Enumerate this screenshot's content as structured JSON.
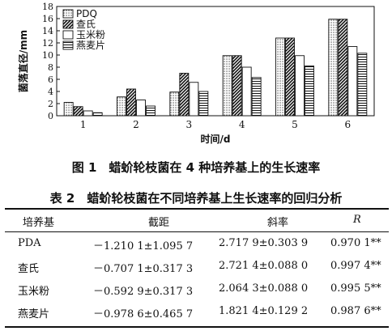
{
  "chart_data": {
    "type": "bar",
    "categories": [
      "1",
      "2",
      "3",
      "4",
      "5",
      "6"
    ],
    "xlabel": "时间/d",
    "ylabel": "菌落直径/mm",
    "ylim": [
      0,
      18
    ],
    "yticks": [
      "0",
      "2",
      "4",
      "6",
      "8",
      "10",
      "12",
      "14",
      "16",
      "18"
    ],
    "legend_position": "top-left",
    "series": [
      {
        "name": "PDQ",
        "pattern": "dots",
        "values": [
          2.2,
          3.1,
          3.9,
          9.9,
          12.8,
          15.9
        ]
      },
      {
        "name": "查氏",
        "pattern": "diagonal",
        "values": [
          1.5,
          4.4,
          7.0,
          9.9,
          12.8,
          15.9
        ]
      },
      {
        "name": "玉米粉",
        "pattern": "empty",
        "values": [
          0.8,
          2.6,
          5.5,
          8.0,
          9.9,
          11.4
        ]
      },
      {
        "name": "燕麦片",
        "pattern": "horizontal",
        "values": [
          0.5,
          1.6,
          4.0,
          6.3,
          8.2,
          10.3
        ]
      }
    ]
  },
  "figure_caption": "图 1　蜡蚧轮枝菌在 4 种培养基上的生长速率",
  "table": {
    "caption": "表 2　蜡蚧轮枝菌在不同培养基上生长速率的回归分析",
    "headers": [
      "培养基",
      "截距",
      "斜率",
      "R"
    ],
    "rows": [
      [
        "PDA",
        "－1.210 1±1.095 7",
        "2.717 9±0.303 9",
        "0.970 1**"
      ],
      [
        "查氏",
        "－0.707 1±0.317 3",
        "2.721 4±0.088 0",
        "0.997 4**"
      ],
      [
        "玉米粉",
        "－0.592 9±0.317 3",
        "2.064 3±0.088 0",
        "0.995 5**"
      ],
      [
        "燕麦片",
        "－0.978 6±0.465 7",
        "1.821 4±0.129 2",
        "0.987 6**"
      ]
    ]
  }
}
